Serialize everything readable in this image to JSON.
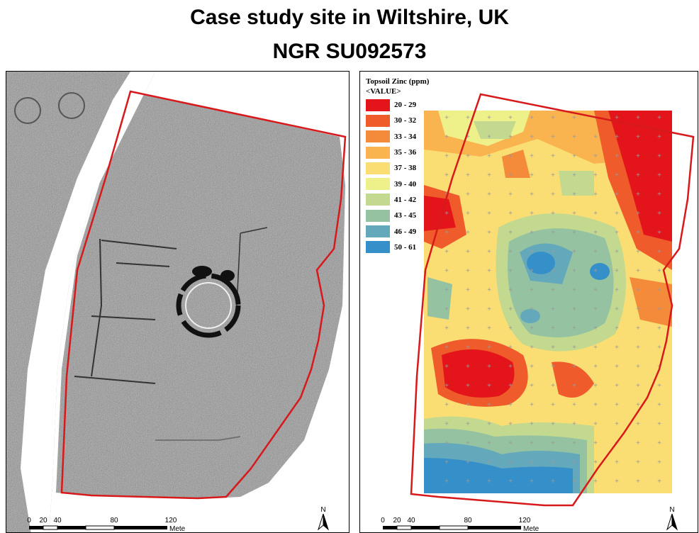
{
  "title_line1": "Case study site in Wiltshire, UK",
  "title_line2": "NGR SU092573",
  "legend": {
    "title": "Topsoil Zinc (ppm)",
    "subtitle": "<VALUE>",
    "classes": [
      {
        "label": "20 - 29",
        "color": "#e3151b"
      },
      {
        "label": "30 - 32",
        "color": "#ef5b2a"
      },
      {
        "label": "33 - 34",
        "color": "#f48b3a"
      },
      {
        "label": "35 - 36",
        "color": "#f9b450"
      },
      {
        "label": "37 - 38",
        "color": "#fbde73"
      },
      {
        "label": "39 - 40",
        "color": "#eef08a"
      },
      {
        "label": "41 - 42",
        "color": "#c3d98f"
      },
      {
        "label": "43 - 45",
        "color": "#95c2a0"
      },
      {
        "label": "46 - 49",
        "color": "#64a9bb"
      },
      {
        "label": "50 - 61",
        "color": "#3590c9"
      }
    ]
  },
  "scale_bar": {
    "ticks": [
      "0",
      "20",
      "40",
      "80",
      "120"
    ],
    "unit": "Meters"
  },
  "north_label": "N",
  "colors": {
    "boundary": "#d7191c",
    "survey_gray": "#9a9a9a"
  }
}
